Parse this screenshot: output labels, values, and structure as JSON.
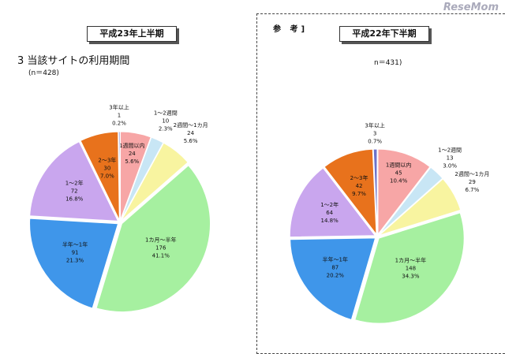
{
  "watermark": "ReseMom",
  "left": {
    "title": "平成23年上半期",
    "heading": "3 当該サイトの利用期間",
    "n": "(n＝428)"
  },
  "right": {
    "ref": "参 考]",
    "title": "平成22年下半期",
    "n": "n＝431)"
  },
  "chart_data": [
    {
      "type": "pie",
      "title": "平成23年上半期",
      "slices": [
        {
          "label": "1週間以内",
          "count": 24,
          "pct": "5.6%",
          "color": "#f7a6a6"
        },
        {
          "label": "1～2週間",
          "count": 10,
          "pct": "2.3%",
          "color": "#c8e6f5"
        },
        {
          "label": "2週間～1カ月",
          "count": 24,
          "pct": "5.6%",
          "color": "#f8f4a0"
        },
        {
          "label": "1カ月～半年",
          "count": 176,
          "pct": "41.1%",
          "color": "#a6f0a0"
        },
        {
          "label": "半年～1年",
          "count": 91,
          "pct": "21.3%",
          "color": "#3f96ea"
        },
        {
          "label": "1～2年",
          "count": 72,
          "pct": "16.8%",
          "color": "#c9a6ee"
        },
        {
          "label": "2～3年",
          "count": 30,
          "pct": "7.0%",
          "color": "#e8721c"
        },
        {
          "label": "3年以上",
          "count": 1,
          "pct": "0.2%",
          "color": "#6c72c9"
        }
      ]
    },
    {
      "type": "pie",
      "title": "平成22年下半期",
      "slices": [
        {
          "label": "1週間以内",
          "count": 45,
          "pct": "10.4%",
          "color": "#f7a6a6"
        },
        {
          "label": "1～2週間",
          "count": 13,
          "pct": "3.0%",
          "color": "#c8e6f5"
        },
        {
          "label": "2週間～1カ月",
          "count": 29,
          "pct": "6.7%",
          "color": "#f8f4a0"
        },
        {
          "label": "1カ月～半年",
          "count": 148,
          "pct": "34.3%",
          "color": "#a6f0a0"
        },
        {
          "label": "半年～1年",
          "count": 87,
          "pct": "20.2%",
          "color": "#3f96ea"
        },
        {
          "label": "1～2年",
          "count": 64,
          "pct": "14.8%",
          "color": "#c9a6ee"
        },
        {
          "label": "2～3年",
          "count": 42,
          "pct": "9.7%",
          "color": "#e8721c"
        },
        {
          "label": "3年以上",
          "count": 3,
          "pct": "0.7%",
          "color": "#6c72c9"
        }
      ]
    }
  ]
}
